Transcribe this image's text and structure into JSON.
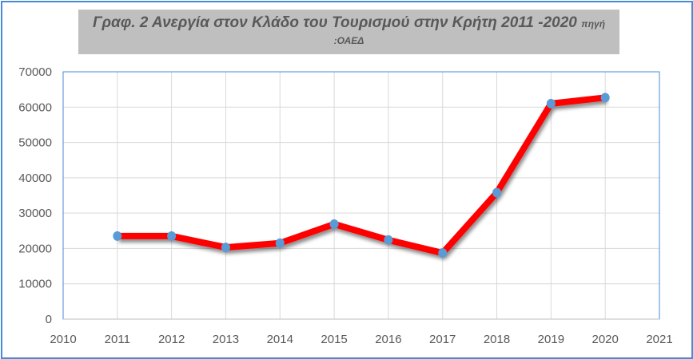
{
  "chart_data": {
    "type": "line",
    "title": "Γραφ. 2 Ανεργία στον Κλάδο του Τουρισμού στην Κρήτη 2011 -2020",
    "title_suffix": "πηγή",
    "subtitle": ":ΟΑΕΔ",
    "x": [
      2011,
      2012,
      2013,
      2014,
      2015,
      2016,
      2017,
      2018,
      2019,
      2020
    ],
    "series": [
      {
        "values": [
          23500,
          23500,
          20300,
          21500,
          26900,
          22400,
          18700,
          35800,
          61000,
          62700
        ],
        "color": "#ff0000",
        "marker_color": "#5b9bd5"
      }
    ],
    "xlim": [
      2010,
      2021
    ],
    "ylim": [
      0,
      70000
    ],
    "xticks": [
      "2010",
      "2011",
      "2012",
      "2013",
      "2014",
      "2015",
      "2016",
      "2017",
      "2018",
      "2019",
      "2020",
      "2021"
    ],
    "yticks": [
      "0",
      "10000",
      "20000",
      "30000",
      "40000",
      "50000",
      "60000",
      "70000"
    ],
    "grid": true,
    "xlabel": "",
    "ylabel": ""
  }
}
